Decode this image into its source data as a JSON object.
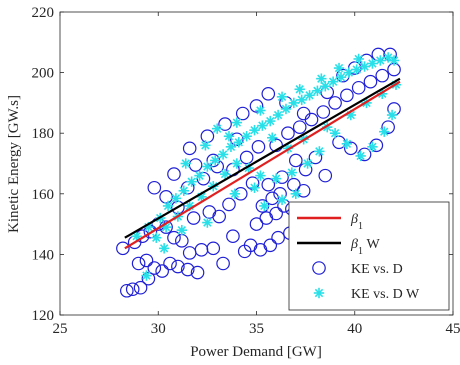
{
  "chart_data": {
    "type": "scatter",
    "xlabel": "Power Demand [GW]",
    "ylabel": "Kinetic Energy [GW.s]",
    "xlim": [
      25,
      45
    ],
    "ylim": [
      120,
      220
    ],
    "xticks": [
      25,
      30,
      35,
      40,
      45
    ],
    "yticks": [
      120,
      140,
      160,
      180,
      200,
      220
    ],
    "grid": false,
    "legend_position": "bottom-right",
    "series": [
      {
        "name": "KE vs. D",
        "type": "scatter",
        "marker": "open-circle",
        "color": "#1f1fd6",
        "points": [
          [
            28.4,
            128.0
          ],
          [
            28.7,
            128.5
          ],
          [
            29.1,
            129.0
          ],
          [
            29.0,
            137.0
          ],
          [
            29.4,
            138.0
          ],
          [
            29.8,
            135.5
          ],
          [
            29.5,
            132.0
          ],
          [
            30.2,
            134.5
          ],
          [
            30.6,
            137.0
          ],
          [
            31.0,
            136.0
          ],
          [
            31.5,
            135.0
          ],
          [
            32.0,
            134.0
          ],
          [
            29.2,
            146.0
          ],
          [
            29.6,
            147.5
          ],
          [
            30.0,
            150.0
          ],
          [
            30.4,
            149.0
          ],
          [
            30.8,
            145.5
          ],
          [
            31.2,
            144.5
          ],
          [
            31.6,
            140.5
          ],
          [
            32.2,
            141.5
          ],
          [
            32.8,
            142.0
          ],
          [
            33.3,
            137.0
          ],
          [
            33.8,
            146.0
          ],
          [
            34.4,
            141.0
          ],
          [
            34.7,
            143.0
          ],
          [
            35.2,
            141.5
          ],
          [
            35.7,
            143.0
          ],
          [
            36.1,
            145.5
          ],
          [
            36.7,
            147.0
          ],
          [
            37.3,
            146.0
          ],
          [
            35.0,
            150.0
          ],
          [
            35.5,
            152.0
          ],
          [
            36.0,
            153.5
          ],
          [
            36.4,
            156.0
          ],
          [
            36.8,
            155.0
          ],
          [
            35.3,
            156.0
          ],
          [
            35.8,
            158.5
          ],
          [
            36.2,
            160.0
          ],
          [
            35.6,
            163.0
          ],
          [
            36.3,
            165.5
          ],
          [
            36.9,
            163.0
          ],
          [
            37.4,
            161.0
          ],
          [
            34.8,
            163.5
          ],
          [
            34.2,
            160.0
          ],
          [
            33.6,
            156.5
          ],
          [
            33.1,
            152.5
          ],
          [
            32.6,
            154.0
          ],
          [
            31.8,
            152.0
          ],
          [
            31.0,
            155.5
          ],
          [
            30.4,
            159.0
          ],
          [
            31.5,
            162.0
          ],
          [
            32.3,
            165.0
          ],
          [
            33.0,
            169.0
          ],
          [
            33.8,
            168.0
          ],
          [
            34.5,
            172.0
          ],
          [
            35.1,
            175.5
          ],
          [
            36.0,
            176.0
          ],
          [
            36.6,
            180.0
          ],
          [
            37.2,
            182.0
          ],
          [
            37.8,
            184.5
          ],
          [
            38.4,
            187.0
          ],
          [
            39.0,
            190.0
          ],
          [
            39.6,
            192.5
          ],
          [
            40.2,
            195.0
          ],
          [
            40.8,
            197.0
          ],
          [
            41.4,
            199.0
          ],
          [
            42.0,
            201.0
          ],
          [
            38.6,
            193.5
          ],
          [
            39.4,
            199.0
          ],
          [
            40.0,
            201.5
          ],
          [
            40.6,
            204.0
          ],
          [
            41.2,
            206.0
          ],
          [
            41.8,
            206.0
          ],
          [
            39.2,
            177.0
          ],
          [
            39.8,
            175.0
          ],
          [
            40.5,
            173.0
          ],
          [
            41.1,
            176.0
          ],
          [
            41.7,
            182.0
          ],
          [
            42.0,
            188.0
          ],
          [
            38.0,
            172.0
          ],
          [
            37.5,
            168.0
          ],
          [
            38.5,
            166.0
          ],
          [
            37.0,
            171.0
          ],
          [
            32.5,
            179.0
          ],
          [
            33.4,
            183.0
          ],
          [
            34.3,
            186.5
          ],
          [
            35.0,
            189.0
          ],
          [
            35.6,
            193.0
          ],
          [
            31.6,
            175.0
          ],
          [
            32.8,
            171.0
          ],
          [
            29.8,
            162.0
          ],
          [
            30.8,
            166.5
          ],
          [
            31.9,
            169.5
          ],
          [
            34.0,
            178.0
          ],
          [
            36.5,
            190.0
          ],
          [
            37.4,
            186.5
          ],
          [
            28.2,
            142.0
          ],
          [
            28.8,
            144.0
          ]
        ]
      },
      {
        "name": "KE vs. D W",
        "type": "scatter",
        "marker": "asterisk",
        "color": "#29e0e8",
        "points": [
          [
            28.9,
            146.0
          ],
          [
            29.5,
            149.0
          ],
          [
            29.4,
            133.0
          ],
          [
            30.1,
            152.0
          ],
          [
            30.5,
            156.0
          ],
          [
            30.9,
            158.5
          ],
          [
            31.3,
            161.0
          ],
          [
            31.7,
            164.0
          ],
          [
            32.1,
            166.0
          ],
          [
            32.5,
            169.0
          ],
          [
            32.9,
            171.0
          ],
          [
            33.3,
            173.0
          ],
          [
            33.7,
            175.5
          ],
          [
            34.1,
            177.0
          ],
          [
            34.5,
            179.0
          ],
          [
            34.9,
            181.0
          ],
          [
            35.3,
            182.5
          ],
          [
            35.7,
            184.0
          ],
          [
            36.1,
            186.0
          ],
          [
            36.5,
            188.0
          ],
          [
            36.9,
            190.0
          ],
          [
            37.3,
            191.0
          ],
          [
            37.7,
            192.5
          ],
          [
            38.1,
            194.0
          ],
          [
            38.5,
            195.5
          ],
          [
            38.9,
            197.0
          ],
          [
            39.3,
            198.5
          ],
          [
            39.7,
            200.0
          ],
          [
            40.1,
            201.0
          ],
          [
            40.5,
            202.0
          ],
          [
            40.9,
            203.0
          ],
          [
            41.3,
            204.0
          ],
          [
            41.7,
            205.0
          ],
          [
            42.0,
            204.0
          ],
          [
            33.0,
            181.5
          ],
          [
            34.0,
            183.5
          ],
          [
            35.2,
            187.5
          ],
          [
            36.3,
            192.0
          ],
          [
            37.2,
            194.5
          ],
          [
            38.3,
            198.0
          ],
          [
            39.2,
            201.5
          ],
          [
            40.2,
            204.5
          ],
          [
            39.0,
            180.0
          ],
          [
            39.6,
            176.5
          ],
          [
            40.3,
            172.5
          ],
          [
            40.9,
            175.5
          ],
          [
            41.5,
            180.5
          ],
          [
            41.9,
            186.0
          ],
          [
            38.2,
            174.0
          ],
          [
            37.6,
            170.0
          ],
          [
            36.8,
            167.0
          ],
          [
            36.0,
            165.0
          ],
          [
            35.2,
            166.0
          ],
          [
            34.6,
            168.5
          ],
          [
            34.0,
            170.0
          ],
          [
            33.4,
            166.5
          ],
          [
            32.8,
            162.5
          ],
          [
            32.2,
            159.0
          ],
          [
            31.6,
            156.0
          ],
          [
            31.0,
            152.5
          ],
          [
            30.4,
            149.0
          ],
          [
            29.9,
            145.5
          ],
          [
            31.4,
            170.0
          ],
          [
            32.4,
            176.0
          ],
          [
            33.6,
            179.0
          ],
          [
            35.8,
            178.5
          ],
          [
            36.6,
            175.0
          ],
          [
            37.4,
            178.0
          ],
          [
            38.6,
            182.0
          ],
          [
            39.8,
            186.0
          ],
          [
            40.6,
            190.0
          ],
          [
            41.4,
            193.0
          ],
          [
            42.1,
            196.0
          ],
          [
            37.0,
            160.0
          ],
          [
            36.3,
            158.0
          ],
          [
            35.4,
            156.0
          ],
          [
            30.3,
            142.0
          ],
          [
            31.2,
            148.0
          ],
          [
            32.5,
            150.5
          ],
          [
            33.9,
            160.0
          ],
          [
            34.9,
            162.0
          ]
        ]
      },
      {
        "name": "β1",
        "type": "line",
        "color": "#e02020",
        "points": [
          [
            28.3,
            142.0
          ],
          [
            42.3,
            197.0
          ]
        ]
      },
      {
        "name": "β1 W",
        "type": "line",
        "color": "#000000",
        "points": [
          [
            28.3,
            145.5
          ],
          [
            42.3,
            198.0
          ]
        ]
      }
    ],
    "legend": [
      {
        "label": "β",
        "sub": "1",
        "suffix": "",
        "kind": "line",
        "color": "#e02020"
      },
      {
        "label": "β",
        "sub": "1",
        "suffix": " W",
        "kind": "line",
        "color": "#000000"
      },
      {
        "label": "KE vs. D",
        "sub": "",
        "suffix": "",
        "kind": "open-circle",
        "color": "#1f1fd6"
      },
      {
        "label": "KE vs. D W",
        "sub": "",
        "suffix": "",
        "kind": "asterisk",
        "color": "#29e0e8"
      }
    ]
  }
}
